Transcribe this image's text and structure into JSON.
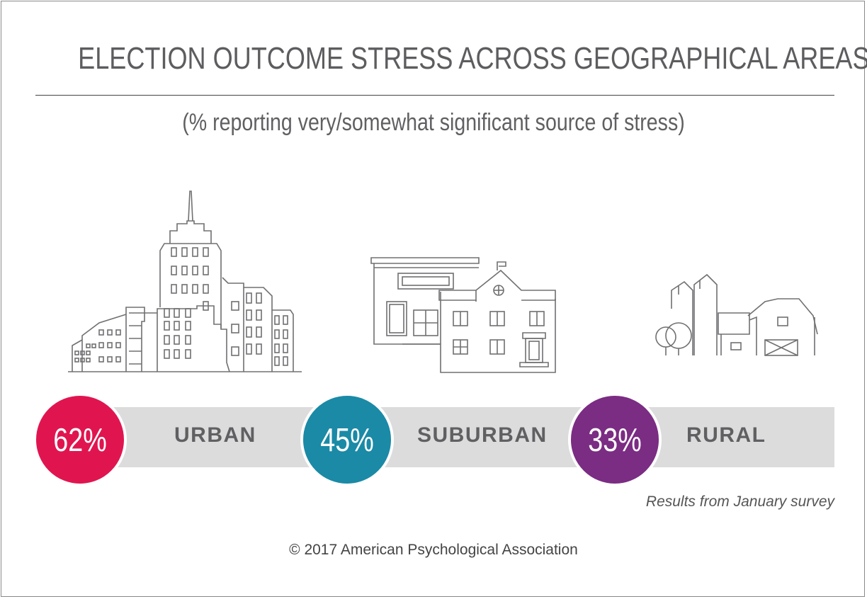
{
  "chart_data": {
    "type": "bar",
    "title": "ELECTION OUTCOME STRESS ACROSS GEOGRAPHICAL AREAS",
    "subtitle": "(% reporting very/somewhat significant source of stress)",
    "categories": [
      "URBAN",
      "SUBURBAN",
      "RURAL"
    ],
    "values": [
      62,
      45,
      33
    ],
    "value_labels": [
      "62%",
      "45%",
      "33%"
    ],
    "colors": [
      "#e0154f",
      "#1a8aa6",
      "#7b2c83"
    ],
    "icons": [
      "city-skyline-icon",
      "suburban-houses-icon",
      "rural-farm-icon"
    ]
  },
  "footnote": "Results from January survey",
  "copyright": "© 2017 American Psychological Association"
}
